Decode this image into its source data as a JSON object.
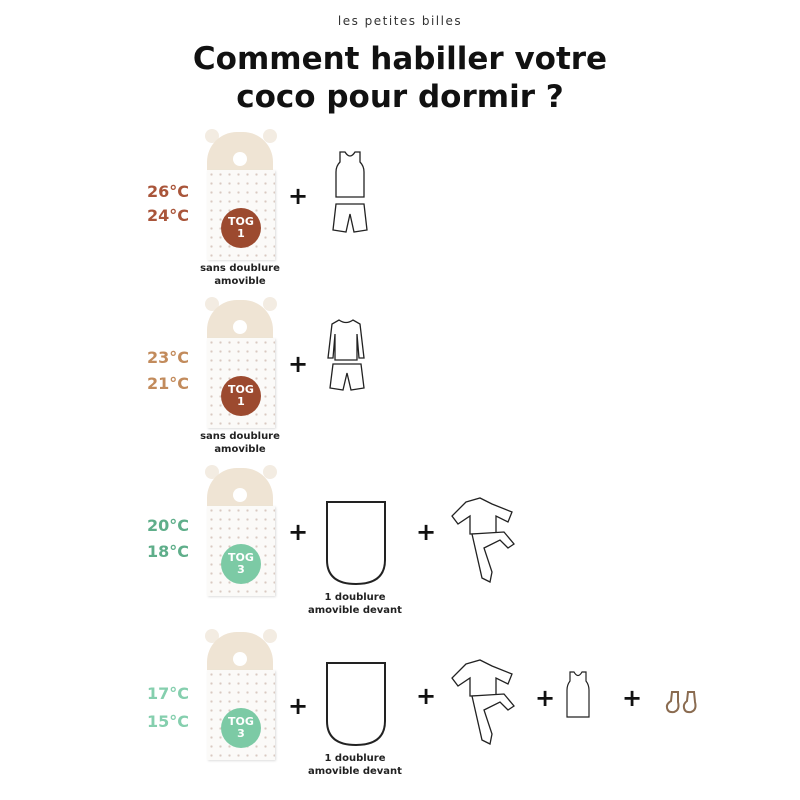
{
  "brand": "les petites billes",
  "title_line1": "Comment habiller votre",
  "title_line2": "coco pour dormir ?",
  "plus": "+",
  "rows": [
    {
      "temp_high": "26°C",
      "temp_low": "24°C",
      "temp_color": "#a9553a",
      "tog_label": "TOG",
      "tog_value": "1",
      "tog_color": "#9c4a2f",
      "caption1": "sans doublure",
      "caption2": "amovible",
      "items": [
        "tank-top",
        "shorts"
      ]
    },
    {
      "temp_high": "23°C",
      "temp_low": "21°C",
      "temp_color": "#c28b5c",
      "tog_label": "TOG",
      "tog_value": "1",
      "tog_color": "#9c4a2f",
      "caption1": "sans doublure",
      "caption2": "amovible",
      "items": [
        "long-sleeve-top",
        "shorts"
      ]
    },
    {
      "temp_high": "20°C",
      "temp_low": "18°C",
      "temp_color": "#5fae8a",
      "tog_label": "TOG",
      "tog_value": "3",
      "tog_color": "#7ccaa5",
      "lining_caption1": "1 doublure",
      "lining_caption2": "amovible devant",
      "items": [
        "removable-lining",
        "pyjamas"
      ]
    },
    {
      "temp_high": "17°C",
      "temp_low": "15°C",
      "temp_color": "#85cfae",
      "tog_label": "TOG",
      "tog_value": "3",
      "tog_color": "#7ccaa5",
      "lining_caption1": "1 doublure",
      "lining_caption2": "amovible devant",
      "items": [
        "removable-lining",
        "pyjamas",
        "tank-top",
        "socks"
      ]
    }
  ]
}
